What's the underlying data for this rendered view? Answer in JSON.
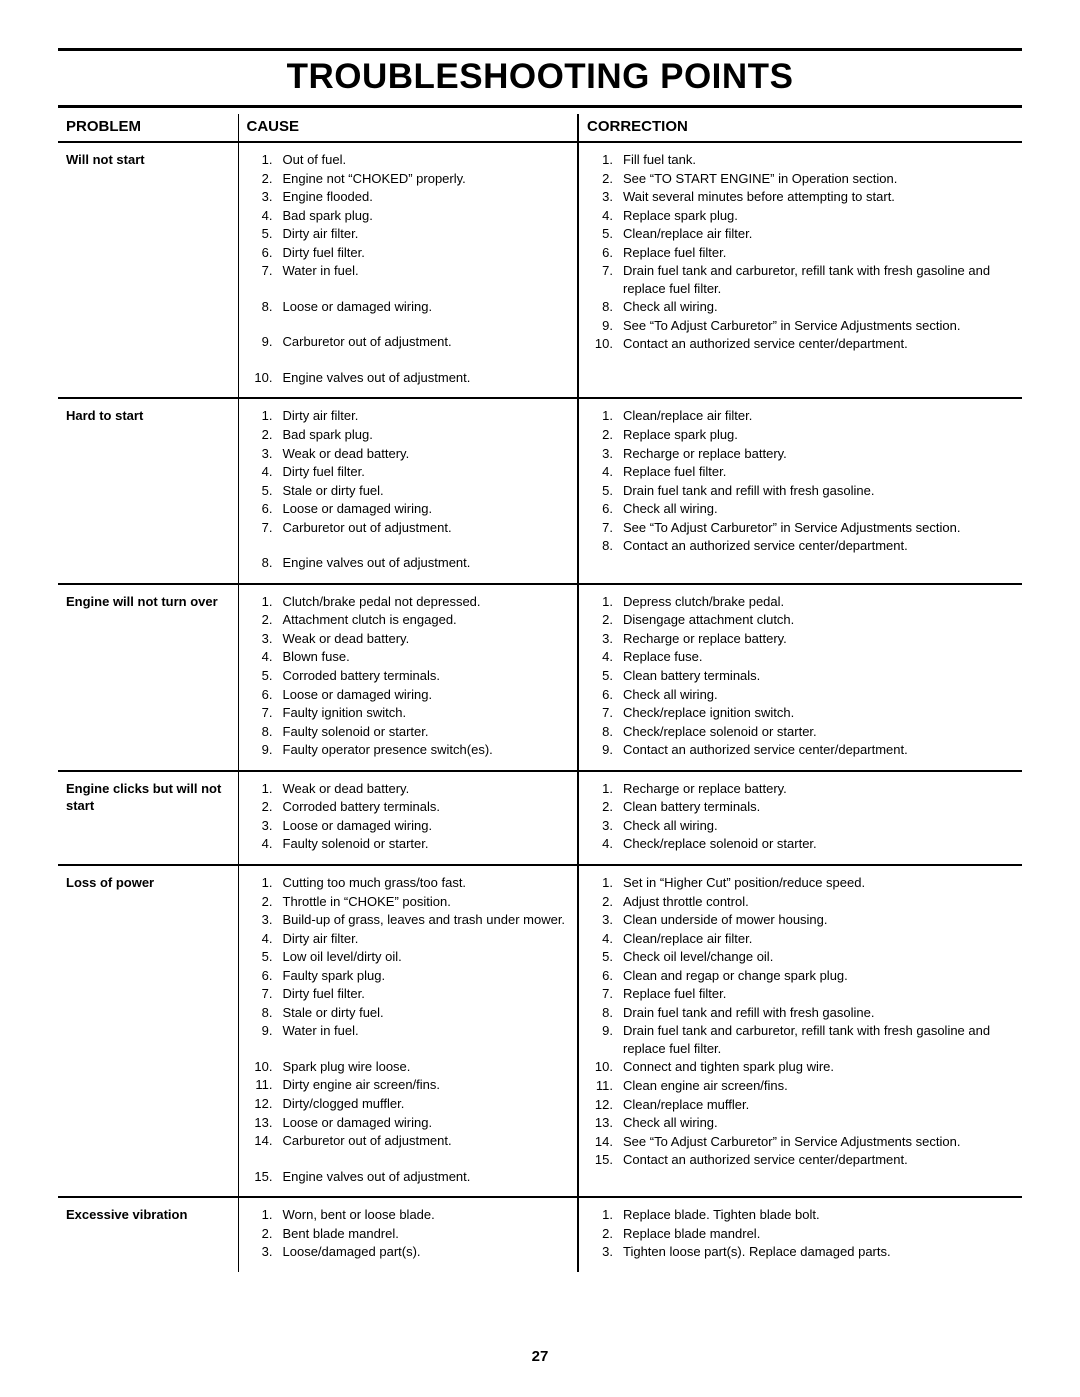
{
  "page_number": "27",
  "title": "TROUBLESHOOTING POINTS",
  "headers": {
    "problem": "PROBLEM",
    "cause": "CAUSE",
    "correction": "CORRECTION"
  },
  "rows": [
    {
      "problem": "Will not start",
      "causes": [
        "Out of fuel.",
        "Engine not “CHOKED” properly.",
        "Engine flooded.",
        "Bad spark plug.",
        "Dirty air filter.",
        "Dirty fuel filter.",
        "Water in fuel.",
        "Loose or damaged wiring.",
        "Carburetor out of adjustment.",
        "Engine valves out of adjustment."
      ],
      "cause_gaps": [
        7,
        8,
        9
      ],
      "corrections": [
        "Fill fuel tank.",
        "See “TO START ENGINE” in Operation section.",
        "Wait several minutes before attempting to start.",
        "Replace spark plug.",
        "Clean/replace air filter.",
        "Replace fuel filter.",
        "Drain fuel tank and carburetor, refill tank with fresh gasoline and replace fuel filter.",
        "Check all wiring.",
        "See “To Adjust Carburetor” in Service Adjustments section.",
        "Contact an authorized service center/department."
      ]
    },
    {
      "problem": "Hard to start",
      "causes": [
        "Dirty air filter.",
        "Bad spark plug.",
        "Weak or dead battery.",
        "Dirty fuel filter.",
        "Stale or dirty fuel.",
        "Loose or damaged wiring.",
        "Carburetor out of adjustment.",
        "Engine valves out of adjustment."
      ],
      "cause_gaps": [
        7
      ],
      "corrections": [
        "Clean/replace air filter.",
        "Replace spark plug.",
        "Recharge or replace battery.",
        "Replace fuel filter.",
        "Drain fuel tank and refill with fresh gasoline.",
        "Check all wiring.",
        "See “To Adjust Carburetor” in Service Adjustments section.",
        "Contact an authorized service center/department."
      ]
    },
    {
      "problem": "Engine will not turn over",
      "causes": [
        "Clutch/brake pedal not depressed.",
        "Attachment clutch is engaged.",
        "Weak or dead battery.",
        "Blown fuse.",
        "Corroded battery terminals.",
        "Loose or damaged wiring.",
        "Faulty ignition switch.",
        "Faulty solenoid or starter.",
        "Faulty operator presence switch(es)."
      ],
      "corrections": [
        "Depress clutch/brake pedal.",
        "Disengage attachment clutch.",
        "Recharge or replace battery.",
        "Replace fuse.",
        "Clean battery terminals.",
        "Check all wiring.",
        "Check/replace ignition switch.",
        "Check/replace solenoid or starter.",
        "Contact an authorized service center/department."
      ]
    },
    {
      "problem": "Engine clicks but will not start",
      "causes": [
        "Weak or dead battery.",
        "Corroded battery terminals.",
        "Loose or damaged wiring.",
        "Faulty solenoid or starter."
      ],
      "corrections": [
        "Recharge or replace battery.",
        "Clean battery terminals.",
        "Check all wiring.",
        "Check/replace solenoid or starter."
      ]
    },
    {
      "problem": "Loss of power",
      "causes": [
        "Cutting too much grass/too fast.",
        "Throttle in “CHOKE” position.",
        "Build-up of grass, leaves and trash under mower.",
        "Dirty air filter.",
        "Low oil level/dirty oil.",
        "Faulty spark plug.",
        "Dirty fuel filter.",
        "Stale or dirty fuel.",
        "Water in fuel.",
        "Spark plug wire loose.",
        "Dirty engine air screen/fins.",
        "Dirty/clogged muffler.",
        "Loose or damaged wiring.",
        "Carburetor out of adjustment.",
        "Engine valves out of adjustment."
      ],
      "cause_gaps": [
        9,
        14
      ],
      "corrections": [
        "Set in “Higher Cut” position/reduce speed.",
        "Adjust throttle control.",
        "Clean underside of mower housing.",
        "Clean/replace air filter.",
        "Check oil level/change oil.",
        "Clean and regap or change spark plug.",
        "Replace fuel filter.",
        "Drain fuel tank and refill with fresh gasoline.",
        "Drain fuel tank and carburetor, refill tank with fresh gasoline and replace fuel filter.",
        "Connect and tighten spark plug wire.",
        "Clean engine air screen/fins.",
        "Clean/replace muffler.",
        "Check all wiring.",
        "See “To Adjust Carburetor” in Service Adjustments section.",
        "Contact an authorized service center/department."
      ]
    },
    {
      "problem": "Excessive vibration",
      "no_sep": true,
      "causes": [
        "Worn, bent or loose blade.",
        "Bent blade mandrel.",
        "Loose/damaged part(s)."
      ],
      "corrections": [
        "Replace blade.  Tighten blade bolt.",
        "Replace blade mandrel.",
        "Tighten loose part(s).  Replace damaged parts."
      ]
    }
  ]
}
